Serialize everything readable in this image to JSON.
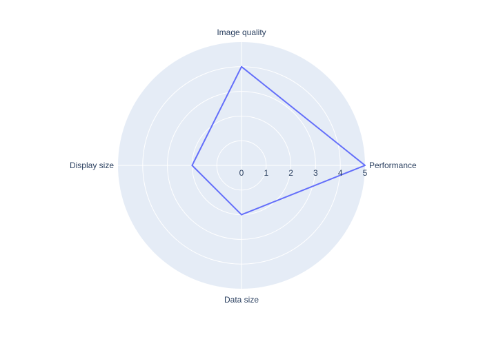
{
  "chart_data": {
    "type": "radar",
    "categories": [
      "Performance",
      "Image quality",
      "Display size",
      "Data size"
    ],
    "series": [
      {
        "values": [
          5,
          4,
          2,
          2
        ]
      }
    ],
    "radial_range": [
      0,
      5
    ],
    "radial_ticks": [
      0,
      1,
      2,
      3,
      4,
      5
    ],
    "grid": true,
    "colors": {
      "background": "#e5ecf6",
      "grid": "#ffffff",
      "series": "#636efa",
      "text": "#2a3f5f"
    }
  }
}
